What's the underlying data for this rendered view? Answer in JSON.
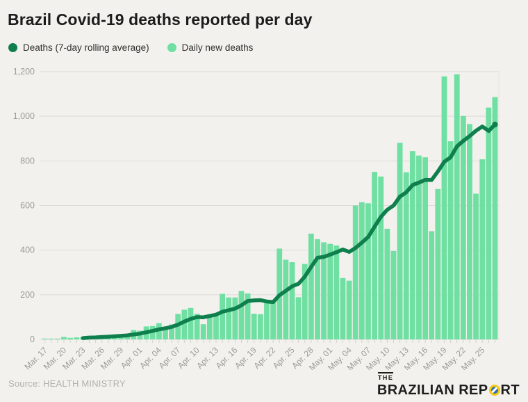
{
  "header": {
    "title": "Brazil Covid-19 deaths reported per day"
  },
  "legend": [
    {
      "label": "Deaths (7-day rolling average)",
      "color": "#0e7f4d"
    },
    {
      "label": "Daily new deaths",
      "color": "#6fdfa2"
    }
  ],
  "footer": {
    "source": "Source: HEALTH MINISTRY",
    "logo": {
      "the": "THE",
      "brand_pre": "BRAZILIAN REP",
      "brand_post": "RT",
      "circle_yellow": "#f6c915",
      "circle_blue": "#2f6db5"
    }
  },
  "chart_data": {
    "type": "bar",
    "title": "Brazil Covid-19 deaths reported per day",
    "xlabel": "",
    "ylabel": "",
    "ylim": [
      0,
      1200
    ],
    "ytick_values": [
      0,
      200,
      400,
      600,
      800,
      1000,
      1200
    ],
    "ytick_labels": [
      "0",
      "200",
      "400",
      "600",
      "800",
      "1,000",
      "1,200"
    ],
    "xtick_every": 3,
    "grid": true,
    "legend_position": "top-left",
    "background": "#f2f1ee",
    "grid_color": "#dcdbd8",
    "axis_text_color": "#9b9b98",
    "x": [
      "Mar. 17",
      "Mar. 18",
      "Mar. 19",
      "Mar. 20",
      "Mar. 21",
      "Mar. 22",
      "Mar. 23",
      "Mar. 24",
      "Mar. 25",
      "Mar. 26",
      "Mar. 27",
      "Mar. 28",
      "Mar. 29",
      "Mar. 30",
      "Mar. 31",
      "Apr. 01",
      "Apr. 02",
      "Apr. 03",
      "Apr. 04",
      "Apr. 05",
      "Apr. 06",
      "Apr. 07",
      "Apr. 08",
      "Apr. 09",
      "Apr. 10",
      "Apr. 11",
      "Apr. 12",
      "Apr. 13",
      "Apr. 14",
      "Apr. 15",
      "Apr. 16",
      "Apr. 17",
      "Apr. 18",
      "Apr. 19",
      "Apr. 20",
      "Apr. 21",
      "Apr. 22",
      "Apr. 23",
      "Apr. 24",
      "Apr. 25",
      "Apr. 26",
      "Apr. 27",
      "Apr. 28",
      "Apr. 29",
      "Apr. 30",
      "May. 01",
      "May. 02",
      "May. 03",
      "May. 04",
      "May. 05",
      "May. 06",
      "May. 07",
      "May. 08",
      "May. 09",
      "May. 10",
      "May. 11",
      "May. 12",
      "May. 13",
      "May. 14",
      "May. 15",
      "May. 16",
      "May. 17",
      "May. 18",
      "May. 19",
      "May. 20",
      "May. 21",
      "May. 22",
      "May. 23",
      "May. 24",
      "May. 25",
      "May. 26",
      "May. 27"
    ],
    "series": [
      {
        "name": "Daily new deaths",
        "render": "bar",
        "color": "#6fdfa2",
        "values": [
          1,
          3,
          3,
          11,
          7,
          9,
          9,
          12,
          13,
          18,
          15,
          22,
          22,
          23,
          42,
          39,
          58,
          60,
          73,
          54,
          67,
          114,
          133,
          141,
          115,
          68,
          99,
          105,
          204,
          188,
          188,
          217,
          206,
          115,
          113,
          166,
          165,
          407,
          357,
          346,
          189,
          338,
          474,
          449,
          435,
          428,
          421,
          275,
          263,
          600,
          615,
          610,
          751,
          730,
          496,
          396,
          881,
          749,
          844,
          824,
          816,
          485,
          674,
          1179,
          888,
          1188,
          1001,
          965,
          653,
          807,
          1039,
          1086
        ]
      },
      {
        "name": "Deaths (7-day rolling average)",
        "render": "line",
        "color": "#0e7f4d",
        "start_index": 6,
        "values": [
          6,
          8,
          9,
          11,
          12,
          14,
          16,
          18,
          22,
          26,
          32,
          38,
          45,
          50,
          56,
          66,
          80,
          92,
          100,
          99,
          105,
          111,
          124,
          131,
          138,
          153,
          172,
          175,
          176,
          170,
          167,
          198,
          218,
          238,
          249,
          281,
          325,
          366,
          370,
          380,
          391,
          403,
          392,
          410,
          434,
          459,
          505,
          549,
          581,
          600,
          640,
          659,
          692,
          703,
          715,
          714,
          753,
          796,
          816,
          865,
          890,
          911,
          935,
          954,
          934,
          963
        ]
      }
    ]
  }
}
